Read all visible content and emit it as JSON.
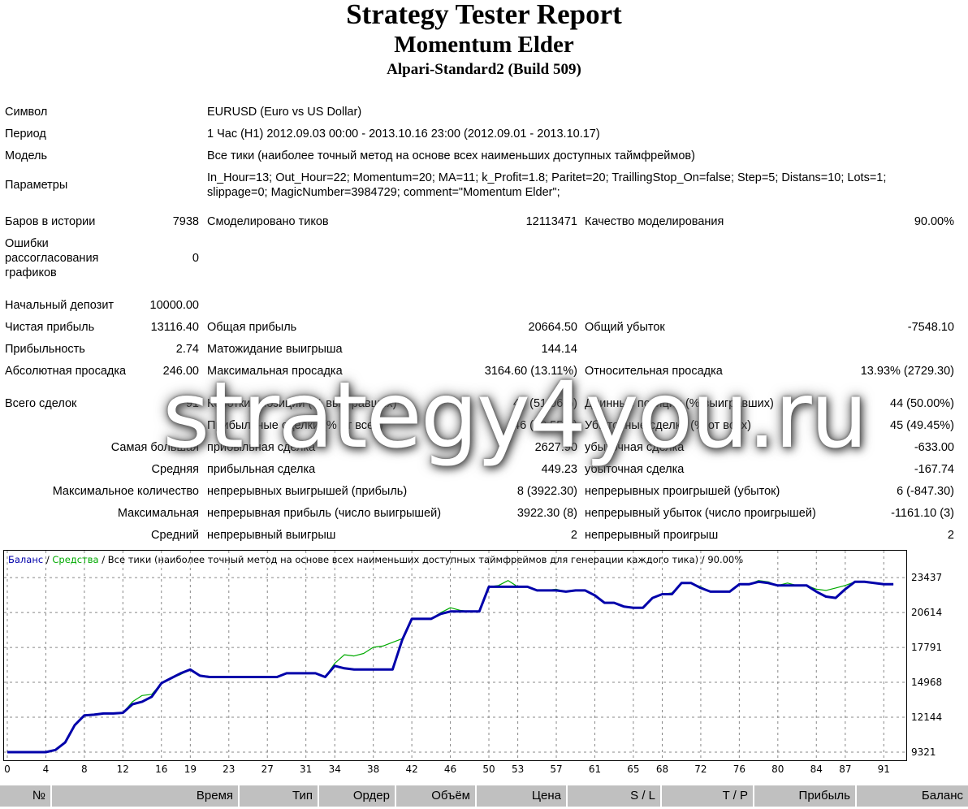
{
  "header": {
    "title": "Strategy Tester Report",
    "expert": "Momentum Elder",
    "server": "Alpari-Standard2 (Build 509)"
  },
  "info": {
    "symbol_label": "Символ",
    "symbol_value": "EURUSD (Euro vs US Dollar)",
    "period_label": "Период",
    "period_value": "1 Час (H1) 2012.09.03 00:00 - 2013.10.16 23:00 (2012.09.01 - 2013.10.17)",
    "model_label": "Модель",
    "model_value": "Все тики (наиболее точный метод на основе всех наименьших доступных таймфреймов)",
    "params_label": "Параметры",
    "params_line1": "In_Hour=13; Out_Hour=22; Momentum=20; MA=11; k_Profit=1.8; Paritet=20; TraillingStop_On=false; Step=5; Distans=10; Lots=1;",
    "params_line2": "slippage=0; MagicNumber=3984729; comment=\"Momentum Elder\";"
  },
  "stats": {
    "bars_label": "Баров в истории",
    "bars_value": "7938",
    "ticks_label": "Смоделировано тиков",
    "ticks_value": "12113471",
    "quality_label": "Качество моделирования",
    "quality_value": "90.00%",
    "errors_label_1": "Ошибки",
    "errors_label_2": "рассогласования",
    "errors_label_3": "графиков",
    "errors_value": "0",
    "deposit_label": "Начальный депозит",
    "deposit_value": "10000.00",
    "net_label": "Чистая прибыль",
    "net_value": "13116.40",
    "gross_profit_label": "Общая прибыль",
    "gross_profit_value": "20664.50",
    "gross_loss_label": "Общий убыток",
    "gross_loss_value": "-7548.10",
    "pf_label": "Прибыльность",
    "pf_value": "2.74",
    "expected_label": "Матожидание выигрыша",
    "expected_value": "144.14",
    "abs_dd_label": "Абсолютная просадка",
    "abs_dd_value": "246.00",
    "max_dd_label": "Максимальная просадка",
    "max_dd_value": "3164.60 (13.11%)",
    "rel_dd_label": "Относительная просадка",
    "rel_dd_value": "13.93% (2729.30)",
    "trades_label": "Всего сделок",
    "trades_value": "91",
    "short_label": "Короткие позиции (% выигравших)",
    "short_value": "47 (51.06%)",
    "long_label": "Длинные позиции (% выигравших)",
    "long_value": "44 (50.00%)",
    "profit_trades_label": "Прибыльные сделки (% от всех)",
    "profit_trades_value": "46 (50.55%)",
    "loss_trades_label": "Убыточные сделки (% от всех)",
    "loss_trades_value": "45 (49.45%)",
    "largest_label": "Самая большая",
    "largest_profit_label": "прибыльная сделка",
    "largest_profit_value": "2627.90",
    "largest_loss_label": "убыточная сделка",
    "largest_loss_value": "-633.00",
    "average_label": "Средняя",
    "average_profit_label": "прибыльная сделка",
    "average_profit_value": "449.23",
    "average_loss_label": "убыточная сделка",
    "average_loss_value": "-167.74",
    "maxcount_label": "Максимальное количество",
    "maxcount_win_label": "непрерывных выигрышей (прибыль)",
    "maxcount_win_value": "8 (3922.30)",
    "maxcount_loss_label": "непрерывных проигрышей (убыток)",
    "maxcount_loss_value": "6 (-847.30)",
    "maximal_label": "Максимальная",
    "maximal_win_label": "непрерывная прибыль (число выигрышей)",
    "maximal_win_value": "3922.30 (8)",
    "maximal_loss_label": "непрерывный убыток (число проигрышей)",
    "maximal_loss_value": "-1161.10 (3)",
    "avgcons_label": "Средний",
    "avgcons_win_label": "непрерывный выигрыш",
    "avgcons_win_value": "2",
    "avgcons_loss_label": "непрерывный проигрыш",
    "avgcons_loss_value": "2"
  },
  "watermark": "strategy4you.ru",
  "chart_data": {
    "type": "line",
    "legend_balance": "Баланс",
    "legend_equity": "Средства",
    "legend_rest": " / Все тики (наиболее точный метод на основе всех наименьших доступных таймфреймов для генерации каждого тика) / 90.00%",
    "xlim": [
      0,
      93
    ],
    "ylim": [
      9321,
      24300
    ],
    "y_ticks": [
      9321,
      12144,
      14968,
      17791,
      20614,
      23437
    ],
    "x_ticks": [
      0,
      4,
      8,
      12,
      16,
      19,
      23,
      27,
      31,
      34,
      38,
      42,
      46,
      50,
      53,
      57,
      61,
      65,
      68,
      72,
      76,
      80,
      84,
      87,
      91
    ],
    "grid": true,
    "series": [
      {
        "name": "Баланс",
        "color": "#0000aa",
        "x": [
          0,
          2.2,
          4,
          5,
          6,
          7,
          8,
          9,
          10,
          11,
          12,
          13,
          14,
          15,
          16,
          17,
          18,
          19,
          20,
          21,
          22,
          23,
          24,
          25,
          26,
          27,
          28,
          29,
          30,
          31,
          32,
          33,
          34,
          35,
          36,
          37,
          38,
          39,
          40,
          41,
          42,
          43,
          44,
          45,
          46,
          47,
          48,
          49,
          50,
          51,
          52,
          53,
          54,
          55,
          56,
          57,
          58,
          59,
          60,
          61,
          62,
          63,
          64,
          65,
          66,
          67,
          68,
          69,
          70,
          71,
          72,
          73,
          74,
          75,
          76,
          77,
          78,
          79,
          80,
          81,
          82,
          83,
          84,
          85,
          86,
          87,
          88,
          89,
          90,
          91,
          92
        ],
        "y": [
          9321,
          9321,
          9321,
          9500,
          10100,
          11500,
          12300,
          12350,
          12450,
          12450,
          12500,
          13200,
          13400,
          13800,
          14900,
          15300,
          15700,
          16000,
          15500,
          15400,
          15400,
          15400,
          15400,
          15400,
          15400,
          15400,
          15400,
          15700,
          15700,
          15700,
          15700,
          15400,
          16300,
          16100,
          16000,
          16000,
          16000,
          16000,
          16000,
          18400,
          20100,
          20100,
          20100,
          20500,
          20700,
          20700,
          20700,
          20700,
          22700,
          22700,
          22700,
          22700,
          22700,
          22400,
          22400,
          22400,
          22300,
          22400,
          22400,
          22000,
          21400,
          21400,
          21100,
          21000,
          21000,
          21800,
          22100,
          22100,
          23000,
          23000,
          22600,
          22300,
          22300,
          22300,
          22900,
          22900,
          23100,
          23000,
          22800,
          22800,
          22800,
          22800,
          22300,
          21900,
          21800,
          22500,
          23100,
          23100,
          23000,
          22900,
          22900
        ]
      },
      {
        "name": "Средства",
        "color": "#00aa00",
        "x": [
          0,
          2.2,
          4,
          5,
          6,
          7,
          8,
          9,
          10,
          11,
          12,
          13,
          14,
          15,
          16,
          17,
          18,
          19,
          20,
          21,
          22,
          23,
          24,
          25,
          26,
          27,
          28,
          29,
          30,
          31,
          32,
          33,
          34,
          35,
          36,
          37,
          38,
          39,
          40,
          41,
          42,
          43,
          44,
          45,
          46,
          47,
          48,
          49,
          50,
          51,
          52,
          53,
          54,
          55,
          56,
          57,
          58,
          59,
          60,
          61,
          62,
          63,
          64,
          65,
          66,
          67,
          68,
          69,
          70,
          71,
          72,
          73,
          74,
          75,
          76,
          77,
          78,
          79,
          80,
          81,
          82,
          83,
          84,
          85,
          86,
          87,
          88,
          89,
          90,
          91,
          92
        ],
        "y": [
          9321,
          9321,
          9321,
          9500,
          10100,
          11500,
          12300,
          12400,
          12450,
          12450,
          12500,
          13400,
          13900,
          14000,
          14900,
          15300,
          15600,
          16000,
          15500,
          15400,
          15400,
          15400,
          15400,
          15400,
          15400,
          15400,
          15400,
          15700,
          15700,
          15700,
          15700,
          15400,
          16500,
          17200,
          17100,
          17300,
          17800,
          17900,
          18200,
          18500,
          20100,
          20100,
          20100,
          20600,
          21000,
          20800,
          20700,
          20700,
          22700,
          22800,
          23200,
          22700,
          22700,
          22400,
          22400,
          22500,
          22300,
          22400,
          22400,
          22000,
          21400,
          21400,
          21100,
          21000,
          21000,
          21800,
          22100,
          22200,
          23000,
          23000,
          22700,
          22300,
          22300,
          22300,
          22900,
          22900,
          23200,
          23100,
          22800,
          23000,
          22800,
          22800,
          22500,
          22400,
          22600,
          22800,
          23100,
          23100,
          23000,
          22900,
          22900
        ]
      }
    ]
  },
  "orders_table": {
    "columns": [
      "№",
      "Время",
      "Тип",
      "Ордер",
      "Объём",
      "Цена",
      "S / L",
      "T / P",
      "Прибыль",
      "Баланс"
    ]
  }
}
